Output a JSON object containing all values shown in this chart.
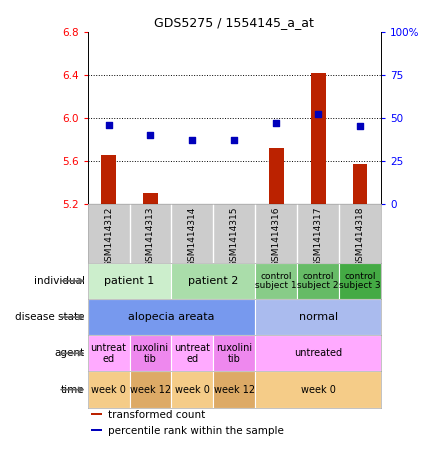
{
  "title": "GDS5275 / 1554145_a_at",
  "samples": [
    "GSM1414312",
    "GSM1414313",
    "GSM1414314",
    "GSM1414315",
    "GSM1414316",
    "GSM1414317",
    "GSM1414318"
  ],
  "bar_values": [
    5.65,
    5.3,
    5.18,
    5.18,
    5.72,
    6.42,
    5.57
  ],
  "dot_values": [
    46,
    40,
    37,
    37,
    47,
    52,
    45
  ],
  "ylim_left": [
    5.2,
    6.8
  ],
  "ylim_right": [
    0,
    100
  ],
  "yticks_left": [
    5.2,
    5.6,
    6.0,
    6.4,
    6.8
  ],
  "yticks_right": [
    0,
    25,
    50,
    75,
    100
  ],
  "ytick_labels_right": [
    "0",
    "25",
    "50",
    "75",
    "100%"
  ],
  "bar_color": "#bb2200",
  "dot_color": "#0000bb",
  "bar_bottom": 5.2,
  "grid_values": [
    5.6,
    6.0,
    6.4
  ],
  "rows": [
    {
      "label": "individual",
      "cells": [
        {
          "text": "patient 1",
          "span": 2,
          "color": "#cceecc",
          "fontsize": 8
        },
        {
          "text": "patient 2",
          "span": 2,
          "color": "#aaddaa",
          "fontsize": 8
        },
        {
          "text": "control\nsubject 1",
          "span": 1,
          "color": "#88cc88",
          "fontsize": 6.5
        },
        {
          "text": "control\nsubject 2",
          "span": 1,
          "color": "#66bb66",
          "fontsize": 6.5
        },
        {
          "text": "control\nsubject 3",
          "span": 1,
          "color": "#44aa44",
          "fontsize": 6.5
        }
      ]
    },
    {
      "label": "disease state",
      "cells": [
        {
          "text": "alopecia areata",
          "span": 4,
          "color": "#7799ee",
          "fontsize": 8
        },
        {
          "text": "normal",
          "span": 3,
          "color": "#aabbee",
          "fontsize": 8
        }
      ]
    },
    {
      "label": "agent",
      "cells": [
        {
          "text": "untreat\ned",
          "span": 1,
          "color": "#ffaaff",
          "fontsize": 7
        },
        {
          "text": "ruxolini\ntib",
          "span": 1,
          "color": "#ee88ee",
          "fontsize": 7
        },
        {
          "text": "untreat\ned",
          "span": 1,
          "color": "#ffaaff",
          "fontsize": 7
        },
        {
          "text": "ruxolini\ntib",
          "span": 1,
          "color": "#ee88ee",
          "fontsize": 7
        },
        {
          "text": "untreated",
          "span": 3,
          "color": "#ffaaff",
          "fontsize": 7
        }
      ]
    },
    {
      "label": "time",
      "cells": [
        {
          "text": "week 0",
          "span": 1,
          "color": "#f5cc88",
          "fontsize": 7
        },
        {
          "text": "week 12",
          "span": 1,
          "color": "#ddaa66",
          "fontsize": 7
        },
        {
          "text": "week 0",
          "span": 1,
          "color": "#f5cc88",
          "fontsize": 7
        },
        {
          "text": "week 12",
          "span": 1,
          "color": "#ddaa66",
          "fontsize": 7
        },
        {
          "text": "week 0",
          "span": 3,
          "color": "#f5cc88",
          "fontsize": 7
        }
      ]
    }
  ],
  "legend_items": [
    {
      "color": "#bb2200",
      "label": "transformed count"
    },
    {
      "color": "#0000bb",
      "label": "percentile rank within the sample"
    }
  ],
  "sample_bg": "#cccccc",
  "chart_bg": "#ffffff"
}
